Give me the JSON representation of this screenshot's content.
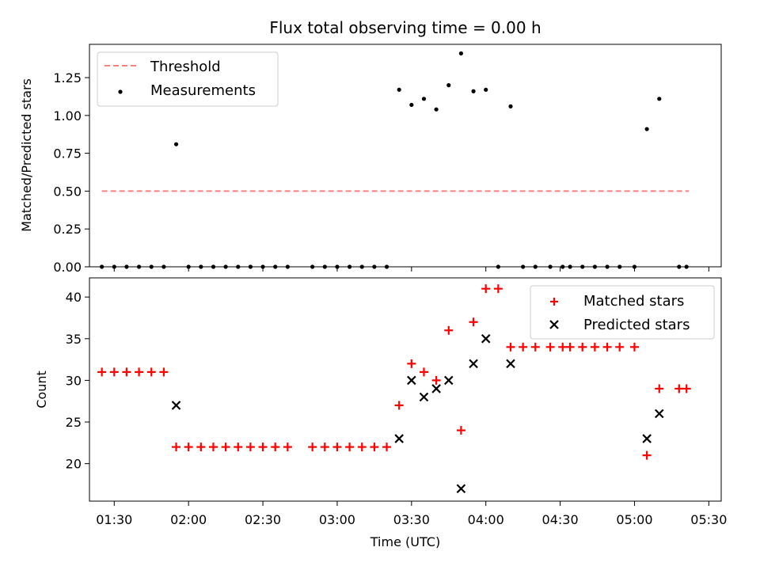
{
  "title": "Flux total observing time = 0.00 h",
  "x_ticks": [
    "01:30",
    "02:00",
    "02:30",
    "03:00",
    "03:30",
    "04:00",
    "04:30",
    "05:00",
    "05:30"
  ],
  "chart_data": [
    {
      "type": "scatter",
      "ylabel": "Matched/Predicted stars",
      "xlabel": "",
      "ylim": [
        0,
        1.47
      ],
      "y_ticks": [
        "0.00",
        "0.25",
        "0.50",
        "0.75",
        "1.00",
        "1.25"
      ],
      "legend": {
        "position": "top-left",
        "entries": [
          "Threshold",
          "Measurements"
        ]
      },
      "colors": {
        "threshold": "#ff8080",
        "measurements": "#000000"
      },
      "series": [
        {
          "name": "Threshold",
          "kind": "dashed-line",
          "x": [
            "01:25",
            "05:22"
          ],
          "y": [
            0.5,
            0.5
          ]
        },
        {
          "name": "Measurements",
          "kind": "points",
          "x": [
            "01:25",
            "01:30",
            "01:35",
            "01:40",
            "01:45",
            "01:50",
            "01:55",
            "02:00",
            "02:05",
            "02:10",
            "02:15",
            "02:20",
            "02:25",
            "02:30",
            "02:35",
            "02:40",
            "02:50",
            "02:55",
            "03:00",
            "03:05",
            "03:10",
            "03:15",
            "03:20",
            "03:25",
            "03:30",
            "03:35",
            "03:40",
            "03:45",
            "03:50",
            "03:55",
            "04:00",
            "04:05",
            "04:10",
            "04:15",
            "04:20",
            "04:26",
            "04:31",
            "04:34",
            "04:39",
            "04:44",
            "04:49",
            "04:54",
            "05:00",
            "05:05",
            "05:10",
            "05:18",
            "05:21"
          ],
          "y": [
            0,
            0,
            0,
            0,
            0,
            0,
            0.81,
            0,
            0,
            0,
            0,
            0,
            0,
            0,
            0,
            0,
            0,
            0,
            0,
            0,
            0,
            0,
            0,
            1.17,
            1.07,
            1.11,
            1.04,
            1.2,
            1.41,
            1.16,
            1.17,
            0,
            1.06,
            0,
            0,
            0,
            0,
            0,
            0,
            0,
            0,
            0,
            0,
            0.91,
            1.11,
            0,
            0
          ]
        }
      ]
    },
    {
      "type": "scatter",
      "ylabel": "Count",
      "xlabel": "Time (UTC)",
      "ylim": [
        15.5,
        42.3
      ],
      "y_ticks": [
        "20",
        "25",
        "30",
        "35",
        "40"
      ],
      "legend": {
        "position": "top-right",
        "entries": [
          "Matched stars",
          "Predicted stars"
        ]
      },
      "colors": {
        "matched": "#ff0000",
        "predicted": "#000000"
      },
      "series": [
        {
          "name": "Matched stars",
          "marker": "plus",
          "x": [
            "01:25",
            "01:30",
            "01:35",
            "01:40",
            "01:45",
            "01:50",
            "01:55",
            "02:00",
            "02:05",
            "02:10",
            "02:15",
            "02:20",
            "02:25",
            "02:30",
            "02:35",
            "02:40",
            "02:50",
            "02:55",
            "03:00",
            "03:05",
            "03:10",
            "03:15",
            "03:20",
            "03:25",
            "03:30",
            "03:35",
            "03:40",
            "03:45",
            "03:50",
            "03:55",
            "04:00",
            "04:05",
            "04:10",
            "04:15",
            "04:20",
            "04:26",
            "04:31",
            "04:34",
            "04:39",
            "04:44",
            "04:49",
            "04:54",
            "05:00",
            "05:05",
            "05:10",
            "05:18",
            "05:21"
          ],
          "y": [
            31,
            31,
            31,
            31,
            31,
            31,
            22,
            22,
            22,
            22,
            22,
            22,
            22,
            22,
            22,
            22,
            22,
            22,
            22,
            22,
            22,
            22,
            22,
            27,
            32,
            31,
            30,
            36,
            24,
            37,
            41,
            41,
            34,
            34,
            34,
            34,
            34,
            34,
            34,
            34,
            34,
            34,
            34,
            21,
            29,
            29,
            29
          ]
        },
        {
          "name": "Predicted stars",
          "marker": "x",
          "x": [
            "01:55",
            "03:25",
            "03:30",
            "03:35",
            "03:40",
            "03:45",
            "03:50",
            "03:55",
            "04:00",
            "04:10",
            "05:05",
            "05:10"
          ],
          "y": [
            27,
            23,
            30,
            28,
            29,
            30,
            17,
            32,
            35,
            32,
            23,
            26
          ]
        }
      ]
    }
  ]
}
